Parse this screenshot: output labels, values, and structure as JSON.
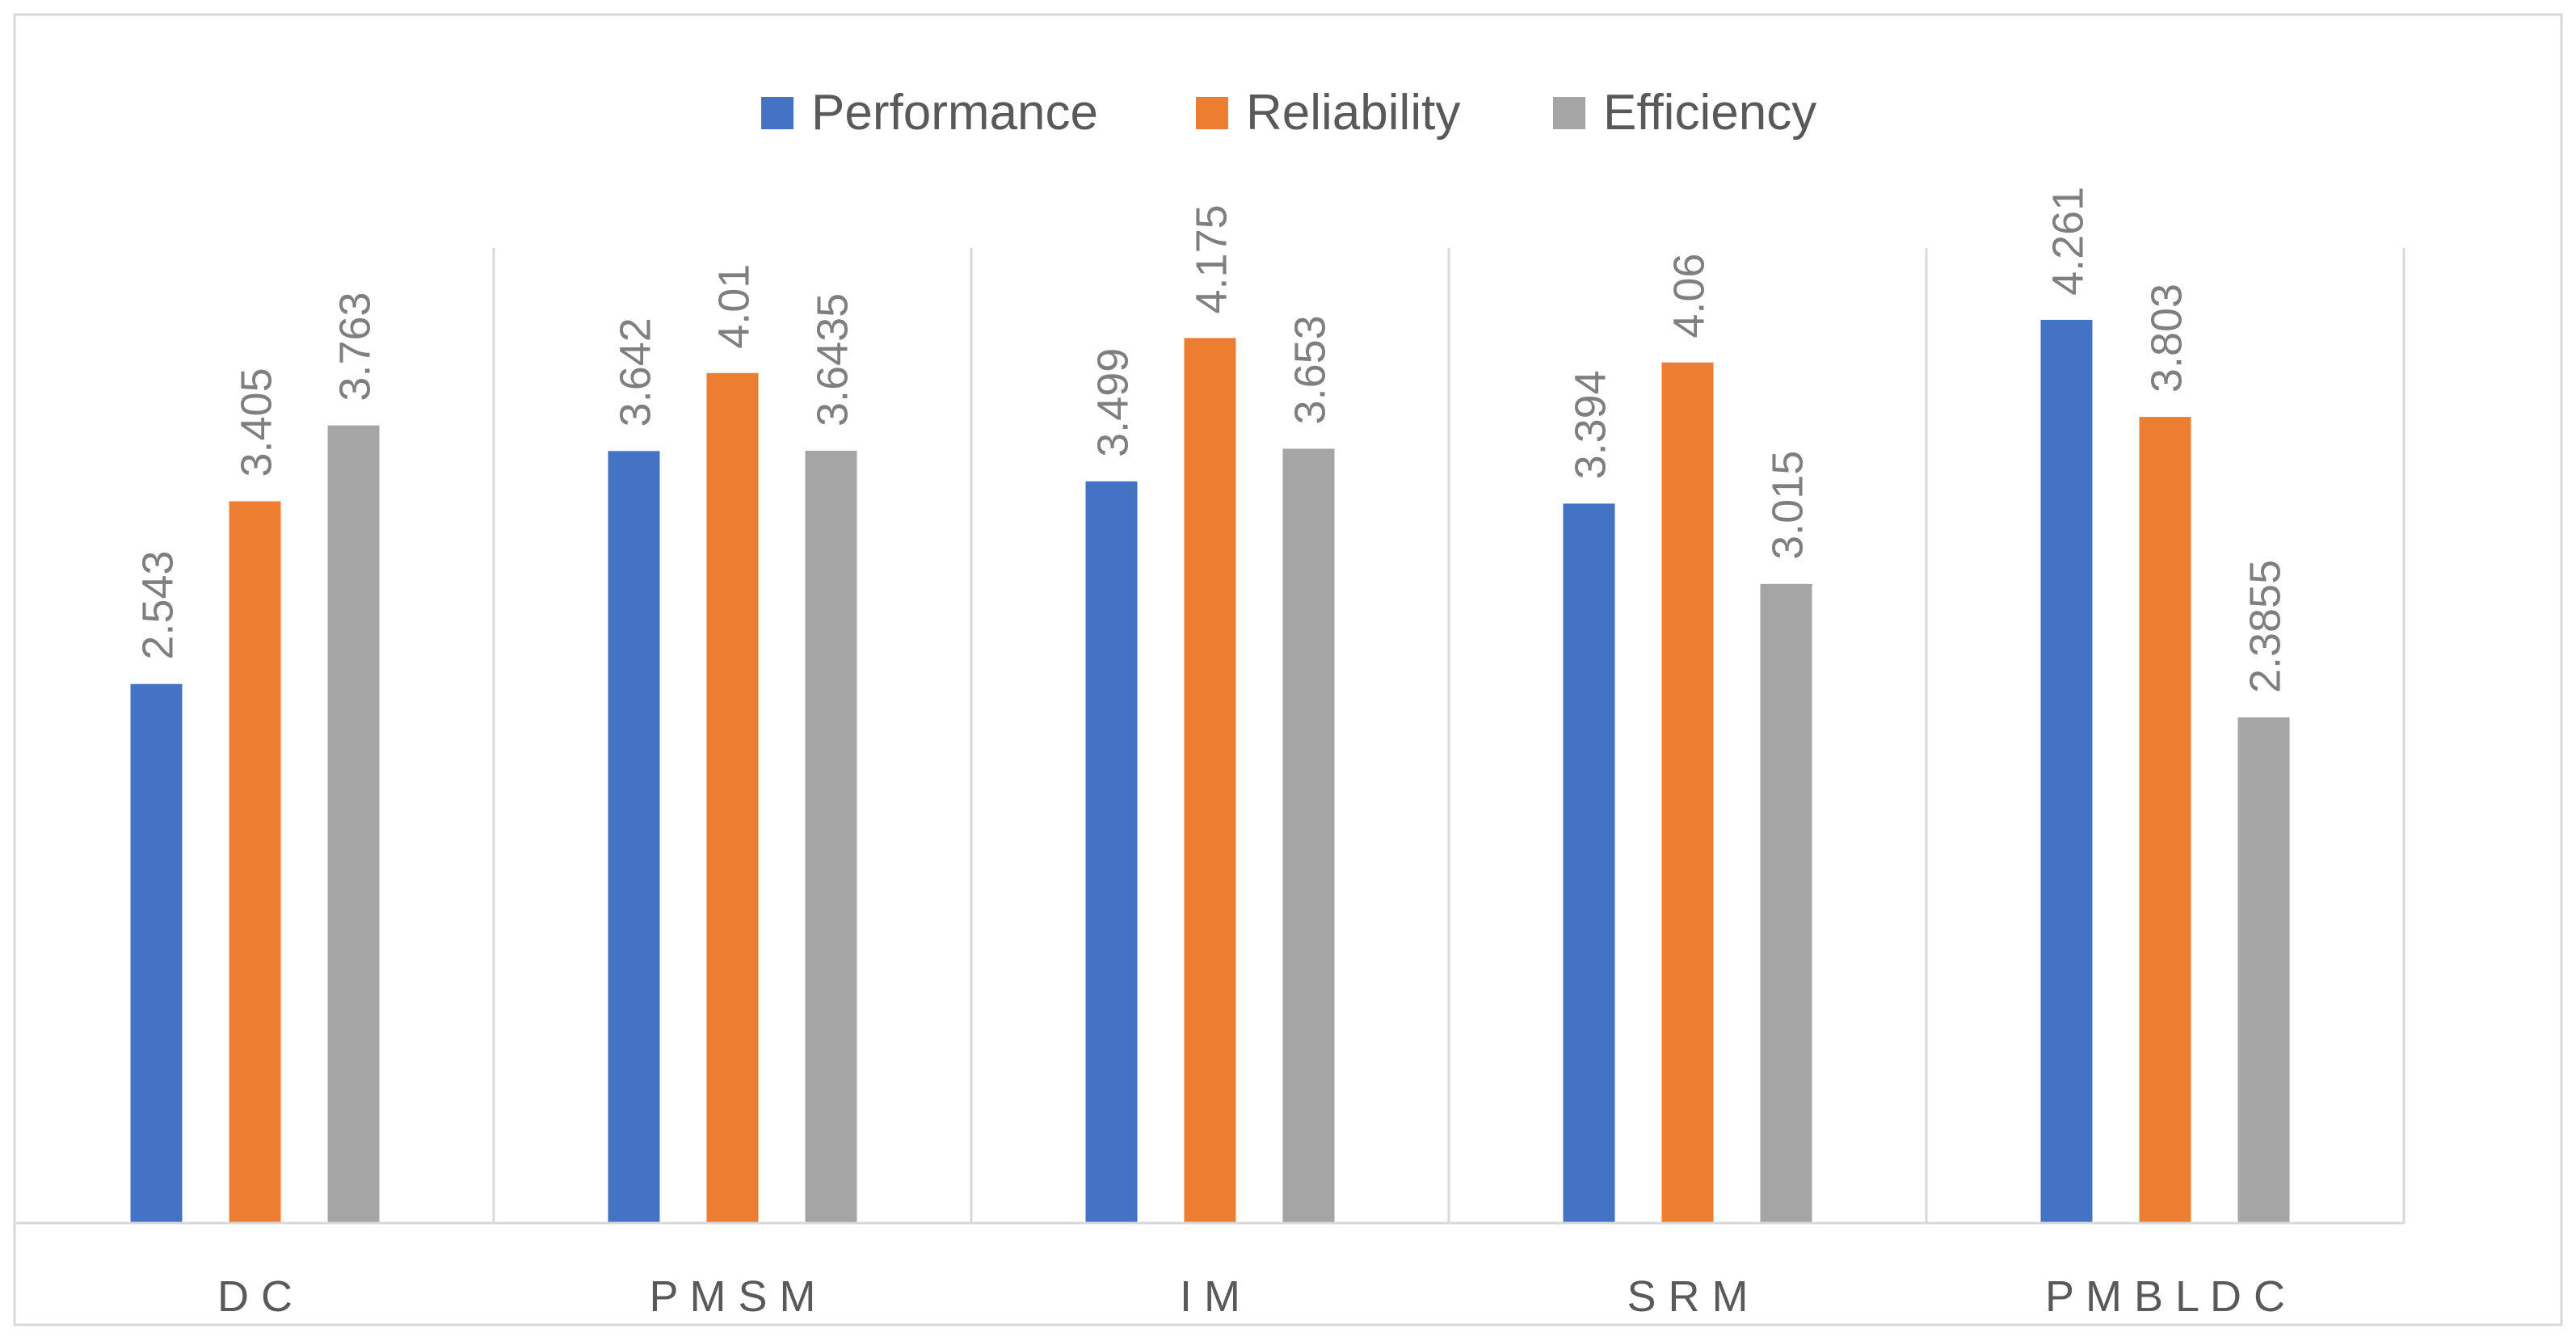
{
  "chart_data": {
    "type": "bar",
    "title": "",
    "xlabel": "",
    "ylabel": "",
    "categories": [
      "D C",
      "P M S M",
      "I M",
      "S R M",
      "P M B L D C"
    ],
    "series": [
      {
        "name": "Performance",
        "color": "#4472C4",
        "values": [
          2.543,
          3.642,
          3.499,
          3.394,
          4.261
        ],
        "labels": [
          "2.543",
          "3.642",
          "3.499",
          "3.394",
          "4.261"
        ]
      },
      {
        "name": "Reliability",
        "color": "#ED7D31",
        "values": [
          3.405,
          4.01,
          4.175,
          4.06,
          3.803
        ],
        "labels": [
          "3.405",
          "4.01",
          "4.175",
          "4.06",
          "3.803"
        ]
      },
      {
        "name": "Efficiency",
        "color": "#A5A5A5",
        "values": [
          3.763,
          3.6435,
          3.653,
          3.015,
          2.3855
        ],
        "labels": [
          "3.763",
          "3.6435",
          "3.653",
          "3.015",
          "2.3855"
        ]
      }
    ],
    "ylim": [
      0,
      4.5
    ],
    "legend_position": "top-center",
    "grid": "vertical category separators",
    "data_labels": "rotated 90°, above bars"
  }
}
